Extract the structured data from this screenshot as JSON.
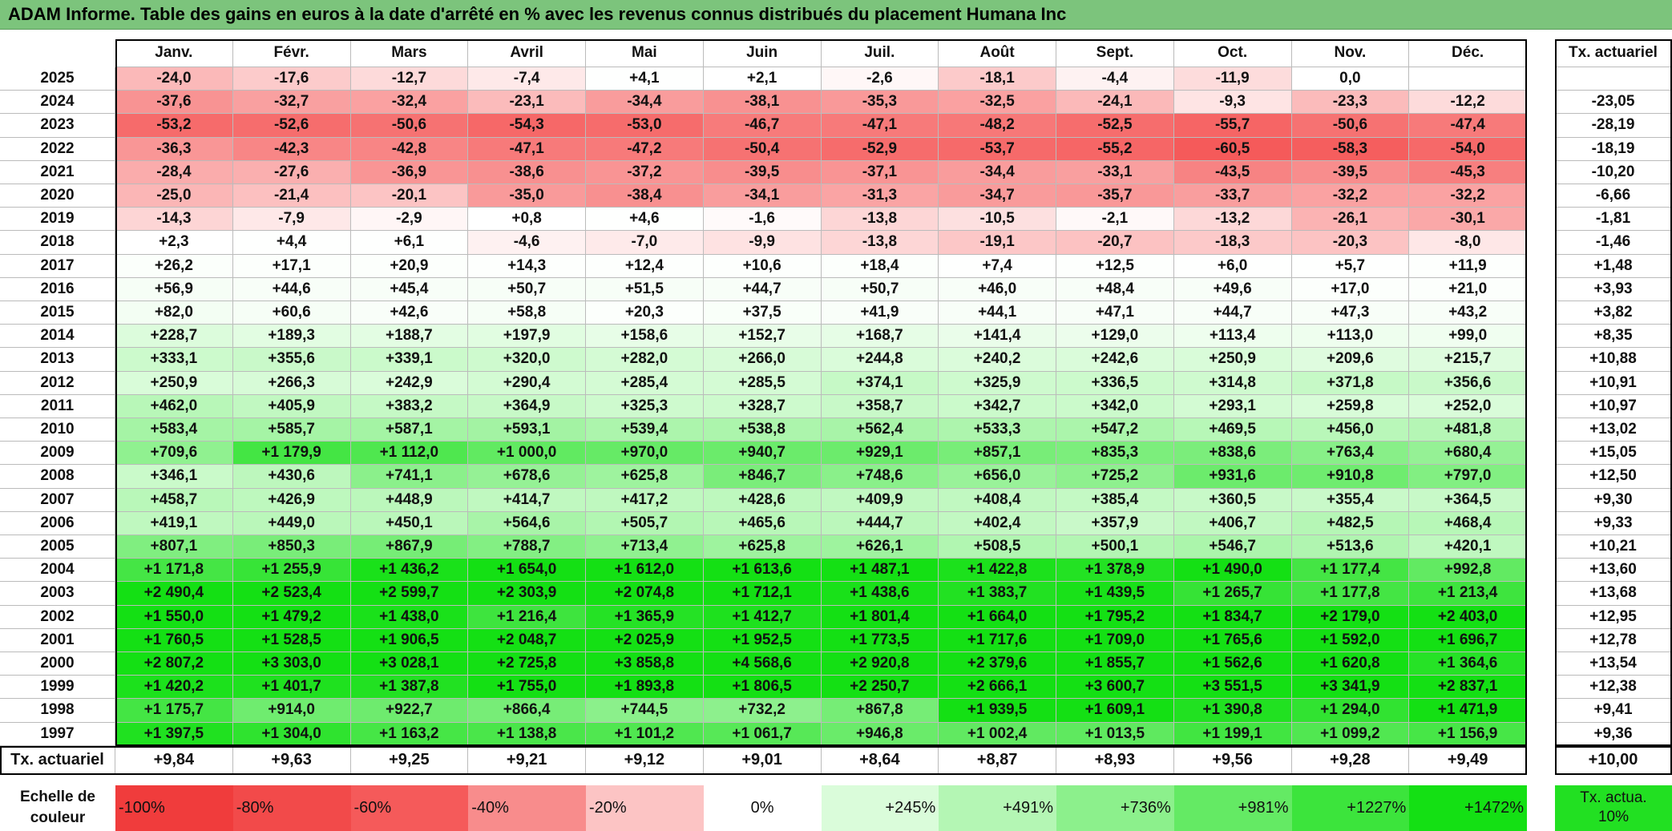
{
  "title": "ADAM Informe. Table des gains en euros à la date d'arrêté en % avec les revenus connus distribués du placement Humana Inc",
  "header": {
    "months": [
      "Janv.",
      "Févr.",
      "Mars",
      "Avril",
      "Mai",
      "Juin",
      "Juil.",
      "Août",
      "Sept.",
      "Oct.",
      "Nov.",
      "Déc."
    ],
    "tx": "Tx. actuariel"
  },
  "rows": [
    {
      "year": "2025",
      "cells": [
        "-24,0",
        "-17,6",
        "-12,7",
        "-7,4",
        "+4,1",
        "+2,1",
        "-2,6",
        "-18,1",
        "-4,4",
        "-11,9",
        "0,0",
        null
      ],
      "tx": null
    },
    {
      "year": "2024",
      "cells": [
        "-37,6",
        "-32,7",
        "-32,4",
        "-23,1",
        "-34,4",
        "-38,1",
        "-35,3",
        "-32,5",
        "-24,1",
        "-9,3",
        "-23,3",
        "-12,2"
      ],
      "tx": "-23,05"
    },
    {
      "year": "2023",
      "cells": [
        "-53,2",
        "-52,6",
        "-50,6",
        "-54,3",
        "-53,0",
        "-46,7",
        "-47,1",
        "-48,2",
        "-52,5",
        "-55,7",
        "-50,6",
        "-47,4"
      ],
      "tx": "-28,19"
    },
    {
      "year": "2022",
      "cells": [
        "-36,3",
        "-42,3",
        "-42,8",
        "-47,1",
        "-47,2",
        "-50,4",
        "-52,9",
        "-53,7",
        "-55,2",
        "-60,5",
        "-58,3",
        "-54,0"
      ],
      "tx": "-18,19"
    },
    {
      "year": "2021",
      "cells": [
        "-28,4",
        "-27,6",
        "-36,9",
        "-38,6",
        "-37,2",
        "-39,5",
        "-37,1",
        "-34,4",
        "-33,1",
        "-43,5",
        "-39,5",
        "-45,3"
      ],
      "tx": "-10,20"
    },
    {
      "year": "2020",
      "cells": [
        "-25,0",
        "-21,4",
        "-20,1",
        "-35,0",
        "-38,4",
        "-34,1",
        "-31,3",
        "-34,7",
        "-35,7",
        "-33,7",
        "-32,2",
        "-32,2"
      ],
      "tx": "-6,66"
    },
    {
      "year": "2019",
      "cells": [
        "-14,3",
        "-7,9",
        "-2,9",
        "+0,8",
        "+4,6",
        "-1,6",
        "-13,8",
        "-10,5",
        "-2,1",
        "-13,2",
        "-26,1",
        "-30,1"
      ],
      "tx": "-1,81"
    },
    {
      "year": "2018",
      "cells": [
        "+2,3",
        "+4,4",
        "+6,1",
        "-4,6",
        "-7,0",
        "-9,9",
        "-13,8",
        "-19,1",
        "-20,7",
        "-18,3",
        "-20,3",
        "-8,0"
      ],
      "tx": "-1,46"
    },
    {
      "year": "2017",
      "cells": [
        "+26,2",
        "+17,1",
        "+20,9",
        "+14,3",
        "+12,4",
        "+10,6",
        "+18,4",
        "+7,4",
        "+12,5",
        "+6,0",
        "+5,7",
        "+11,9"
      ],
      "tx": "+1,48"
    },
    {
      "year": "2016",
      "cells": [
        "+56,9",
        "+44,6",
        "+45,4",
        "+50,7",
        "+51,5",
        "+44,7",
        "+50,7",
        "+46,0",
        "+48,4",
        "+49,6",
        "+17,0",
        "+21,0"
      ],
      "tx": "+3,93"
    },
    {
      "year": "2015",
      "cells": [
        "+82,0",
        "+60,6",
        "+42,6",
        "+58,8",
        "+20,3",
        "+37,5",
        "+41,9",
        "+44,1",
        "+47,1",
        "+44,7",
        "+47,3",
        "+43,2"
      ],
      "tx": "+3,82"
    },
    {
      "year": "2014",
      "cells": [
        "+228,7",
        "+189,3",
        "+188,7",
        "+197,9",
        "+158,6",
        "+152,7",
        "+168,7",
        "+141,4",
        "+129,0",
        "+113,4",
        "+113,0",
        "+99,0"
      ],
      "tx": "+8,35"
    },
    {
      "year": "2013",
      "cells": [
        "+333,1",
        "+355,6",
        "+339,1",
        "+320,0",
        "+282,0",
        "+266,0",
        "+244,8",
        "+240,2",
        "+242,6",
        "+250,9",
        "+209,6",
        "+215,7"
      ],
      "tx": "+10,88"
    },
    {
      "year": "2012",
      "cells": [
        "+250,9",
        "+266,3",
        "+242,9",
        "+290,4",
        "+285,4",
        "+285,5",
        "+374,1",
        "+325,9",
        "+336,5",
        "+314,8",
        "+371,8",
        "+356,6"
      ],
      "tx": "+10,91"
    },
    {
      "year": "2011",
      "cells": [
        "+462,0",
        "+405,9",
        "+383,2",
        "+364,9",
        "+325,3",
        "+328,7",
        "+358,7",
        "+342,7",
        "+342,0",
        "+293,1",
        "+259,8",
        "+252,0"
      ],
      "tx": "+10,97"
    },
    {
      "year": "2010",
      "cells": [
        "+583,4",
        "+585,7",
        "+587,1",
        "+593,1",
        "+539,4",
        "+538,8",
        "+562,4",
        "+533,3",
        "+547,2",
        "+469,5",
        "+456,0",
        "+481,8"
      ],
      "tx": "+13,02"
    },
    {
      "year": "2009",
      "cells": [
        "+709,6",
        "+1 179,9",
        "+1 112,0",
        "+1 000,0",
        "+970,0",
        "+940,7",
        "+929,1",
        "+857,1",
        "+835,3",
        "+838,6",
        "+763,4",
        "+680,4"
      ],
      "tx": "+15,05"
    },
    {
      "year": "2008",
      "cells": [
        "+346,1",
        "+430,6",
        "+741,1",
        "+678,6",
        "+625,8",
        "+846,7",
        "+748,6",
        "+656,0",
        "+725,2",
        "+931,6",
        "+910,8",
        "+797,0"
      ],
      "tx": "+12,50"
    },
    {
      "year": "2007",
      "cells": [
        "+458,7",
        "+426,9",
        "+448,9",
        "+414,7",
        "+417,2",
        "+428,6",
        "+409,9",
        "+408,4",
        "+385,4",
        "+360,5",
        "+355,4",
        "+364,5"
      ],
      "tx": "+9,30"
    },
    {
      "year": "2006",
      "cells": [
        "+419,1",
        "+449,0",
        "+450,1",
        "+564,6",
        "+505,7",
        "+465,6",
        "+444,7",
        "+402,4",
        "+357,9",
        "+406,7",
        "+482,5",
        "+468,4"
      ],
      "tx": "+9,33"
    },
    {
      "year": "2005",
      "cells": [
        "+807,1",
        "+850,3",
        "+867,9",
        "+788,7",
        "+713,4",
        "+625,8",
        "+626,1",
        "+508,5",
        "+500,1",
        "+546,7",
        "+513,6",
        "+420,1"
      ],
      "tx": "+10,21"
    },
    {
      "year": "2004",
      "cells": [
        "+1 171,8",
        "+1 255,9",
        "+1 436,2",
        "+1 654,0",
        "+1 612,0",
        "+1 613,6",
        "+1 487,1",
        "+1 422,8",
        "+1 378,9",
        "+1 490,0",
        "+1 177,4",
        "+992,8"
      ],
      "tx": "+13,60"
    },
    {
      "year": "2003",
      "cells": [
        "+2 490,4",
        "+2 523,4",
        "+2 599,7",
        "+2 303,9",
        "+2 074,8",
        "+1 712,1",
        "+1 438,6",
        "+1 383,7",
        "+1 439,5",
        "+1 265,7",
        "+1 177,8",
        "+1 213,4"
      ],
      "tx": "+13,68"
    },
    {
      "year": "2002",
      "cells": [
        "+1 550,0",
        "+1 479,2",
        "+1 438,0",
        "+1 216,4",
        "+1 365,9",
        "+1 412,7",
        "+1 801,4",
        "+1 664,0",
        "+1 795,2",
        "+1 834,7",
        "+2 179,0",
        "+2 403,0"
      ],
      "tx": "+12,95"
    },
    {
      "year": "2001",
      "cells": [
        "+1 760,5",
        "+1 528,5",
        "+1 906,5",
        "+2 048,7",
        "+2 025,9",
        "+1 952,5",
        "+1 773,5",
        "+1 717,6",
        "+1 709,0",
        "+1 765,6",
        "+1 592,0",
        "+1 696,7"
      ],
      "tx": "+12,78"
    },
    {
      "year": "2000",
      "cells": [
        "+2 807,2",
        "+3 303,0",
        "+3 028,1",
        "+2 725,8",
        "+3 858,8",
        "+4 568,6",
        "+2 920,8",
        "+2 379,6",
        "+1 855,7",
        "+1 562,6",
        "+1 620,8",
        "+1 364,6"
      ],
      "tx": "+13,54"
    },
    {
      "year": "1999",
      "cells": [
        "+1 420,2",
        "+1 401,7",
        "+1 387,8",
        "+1 755,0",
        "+1 893,8",
        "+1 806,5",
        "+2 250,7",
        "+2 666,1",
        "+3 600,7",
        "+3 551,5",
        "+3 341,9",
        "+2 837,1"
      ],
      "tx": "+12,38"
    },
    {
      "year": "1998",
      "cells": [
        "+1 175,7",
        "+914,0",
        "+922,7",
        "+866,4",
        "+744,5",
        "+732,2",
        "+867,8",
        "+1 939,5",
        "+1 609,1",
        "+1 390,8",
        "+1 294,0",
        "+1 471,9"
      ],
      "tx": "+9,41"
    },
    {
      "year": "1997",
      "cells": [
        "+1 397,5",
        "+1 304,0",
        "+1 163,2",
        "+1 138,8",
        "+1 101,2",
        "+1 061,7",
        "+946,8",
        "+1 002,4",
        "+1 013,5",
        "+1 199,1",
        "+1 099,2",
        "+1 156,9"
      ],
      "tx": "+9,36"
    }
  ],
  "footer": {
    "label": "Tx. actuariel",
    "cells": [
      "+9,84",
      "+9,63",
      "+9,25",
      "+9,21",
      "+9,12",
      "+9,01",
      "+8,64",
      "+8,87",
      "+8,93",
      "+9,56",
      "+9,28",
      "+9,49"
    ],
    "tx": "+10,00"
  },
  "scale": {
    "label": "Echelle de couleur",
    "stops": [
      {
        "value": -100,
        "label": "-100%",
        "color": "#f03c3c"
      },
      {
        "value": -80,
        "label": "-80%",
        "color": "#f24a4a"
      },
      {
        "value": -60,
        "label": "-60%",
        "color": "#f55a5a"
      },
      {
        "value": -40,
        "label": "-40%",
        "color": "#f88c8c"
      },
      {
        "value": -20,
        "label": "-20%",
        "color": "#fcc4c4"
      },
      {
        "value": 0,
        "label": "0%",
        "color": "#ffffff"
      },
      {
        "value": 245,
        "label": "+245%",
        "color": "#dafcda"
      },
      {
        "value": 491,
        "label": "+491%",
        "color": "#b4f6b4"
      },
      {
        "value": 736,
        "label": "+736%",
        "color": "#8cf08c"
      },
      {
        "value": 981,
        "label": "+981%",
        "color": "#64ea64"
      },
      {
        "value": 1227,
        "label": "+1227%",
        "color": "#3ce43c"
      },
      {
        "value": 1472,
        "label": "+1472%",
        "color": "#14e014"
      }
    ],
    "tx_label": "Tx. actua. 10%",
    "tx_color": "#22e022"
  }
}
